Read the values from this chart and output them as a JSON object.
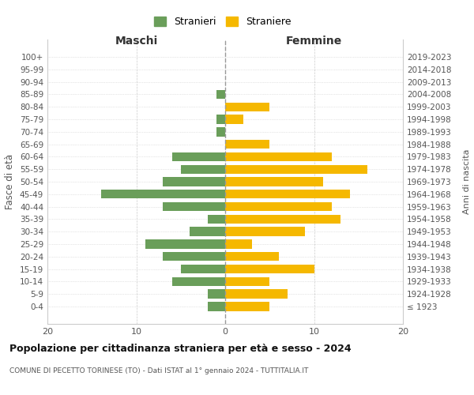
{
  "age_groups": [
    "100+",
    "95-99",
    "90-94",
    "85-89",
    "80-84",
    "75-79",
    "70-74",
    "65-69",
    "60-64",
    "55-59",
    "50-54",
    "45-49",
    "40-44",
    "35-39",
    "30-34",
    "25-29",
    "20-24",
    "15-19",
    "10-14",
    "5-9",
    "0-4"
  ],
  "birth_years": [
    "≤ 1923",
    "1924-1928",
    "1929-1933",
    "1934-1938",
    "1939-1943",
    "1944-1948",
    "1949-1953",
    "1954-1958",
    "1959-1963",
    "1964-1968",
    "1969-1973",
    "1974-1978",
    "1979-1983",
    "1984-1988",
    "1989-1993",
    "1994-1998",
    "1999-2003",
    "2004-2008",
    "2009-2013",
    "2014-2018",
    "2019-2023"
  ],
  "maschi": [
    0,
    0,
    0,
    1,
    0,
    1,
    1,
    0,
    6,
    5,
    7,
    14,
    7,
    2,
    4,
    9,
    7,
    5,
    6,
    2,
    2
  ],
  "femmine": [
    0,
    0,
    0,
    0,
    5,
    2,
    0,
    5,
    12,
    16,
    11,
    14,
    12,
    13,
    9,
    3,
    6,
    10,
    5,
    7,
    5
  ],
  "color_maschi": "#6a9e5a",
  "color_femmine": "#f5b800",
  "title": "Popolazione per cittadinanza straniera per età e sesso - 2024",
  "subtitle": "COMUNE DI PECETTO TORINESE (TO) - Dati ISTAT al 1° gennaio 2024 - TUTTITALIA.IT",
  "xlabel_left": "Maschi",
  "xlabel_right": "Femmine",
  "ylabel": "Fasce di età",
  "ylabel_right": "Anni di nascita",
  "legend_maschi": "Stranieri",
  "legend_femmine": "Straniere",
  "xlim": 20,
  "background_color": "#ffffff"
}
